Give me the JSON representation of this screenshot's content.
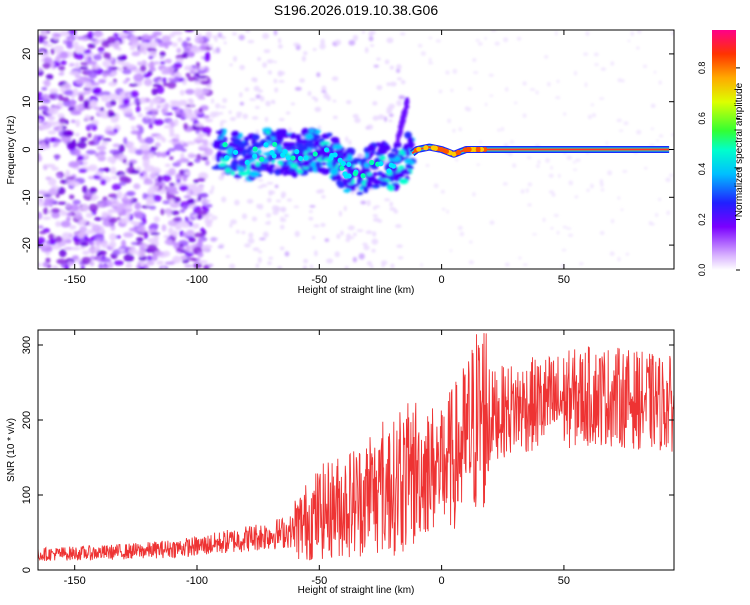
{
  "title": "S196.2026.019.10.38.G06",
  "chart_data": [
    {
      "type": "heatmap",
      "name": "spectrogram",
      "xlabel": "Height of straight line (km)",
      "ylabel": "Frequency (Hz)",
      "xlim": [
        -165,
        95
      ],
      "ylim": [
        -25,
        25
      ],
      "xticks": [
        -150,
        -100,
        -50,
        0,
        50
      ],
      "yticks": [
        -20,
        -10,
        0,
        10,
        20
      ],
      "colorbar": {
        "label": "Normalized spectral amplitude",
        "range": [
          0,
          0.95
        ],
        "ticks": [
          "0.0",
          "0.2",
          "0.4",
          "0.6",
          "0.8"
        ],
        "tick_values": [
          0,
          0.2,
          0.4,
          0.6,
          0.8
        ]
      },
      "ridge": {
        "description": "dominant frequency track",
        "points": [
          [
            -90,
            0
          ],
          [
            -80,
            -2
          ],
          [
            -70,
            0
          ],
          [
            -60,
            -1
          ],
          [
            -50,
            0
          ],
          [
            -45,
            -1
          ],
          [
            -40,
            -4
          ],
          [
            -35,
            -5
          ],
          [
            -30,
            -4
          ],
          [
            -25,
            -3
          ],
          [
            -20,
            -4
          ],
          [
            -15,
            -2
          ],
          [
            -10,
            0
          ],
          [
            -5,
            0.5
          ],
          [
            0,
            0
          ],
          [
            5,
            -1
          ],
          [
            10,
            0
          ],
          [
            15,
            0
          ],
          [
            20,
            0
          ],
          [
            50,
            0
          ],
          [
            93,
            0
          ]
        ]
      }
    },
    {
      "type": "line",
      "name": "snr",
      "xlabel": "Height of straight line (km)",
      "ylabel": "SNR (10 * v/v)",
      "xlim": [
        -165,
        95
      ],
      "ylim": [
        0,
        320
      ],
      "xticks": [
        -150,
        -100,
        -50,
        0,
        50
      ],
      "yticks": [
        0,
        100,
        200,
        300
      ],
      "color": "#ee3333",
      "trend": [
        [
          -165,
          20
        ],
        [
          -140,
          22
        ],
        [
          -120,
          25
        ],
        [
          -100,
          30
        ],
        [
          -80,
          40
        ],
        [
          -60,
          50
        ],
        [
          -50,
          70
        ],
        [
          -40,
          80
        ],
        [
          -30,
          90
        ],
        [
          -20,
          100
        ],
        [
          -15,
          110
        ],
        [
          -10,
          120
        ],
        [
          0,
          130
        ],
        [
          5,
          140
        ],
        [
          10,
          160
        ],
        [
          15,
          190
        ],
        [
          20,
          200
        ],
        [
          30,
          210
        ],
        [
          40,
          215
        ],
        [
          50,
          220
        ],
        [
          60,
          225
        ],
        [
          70,
          225
        ],
        [
          80,
          220
        ],
        [
          93,
          215
        ]
      ]
    }
  ]
}
